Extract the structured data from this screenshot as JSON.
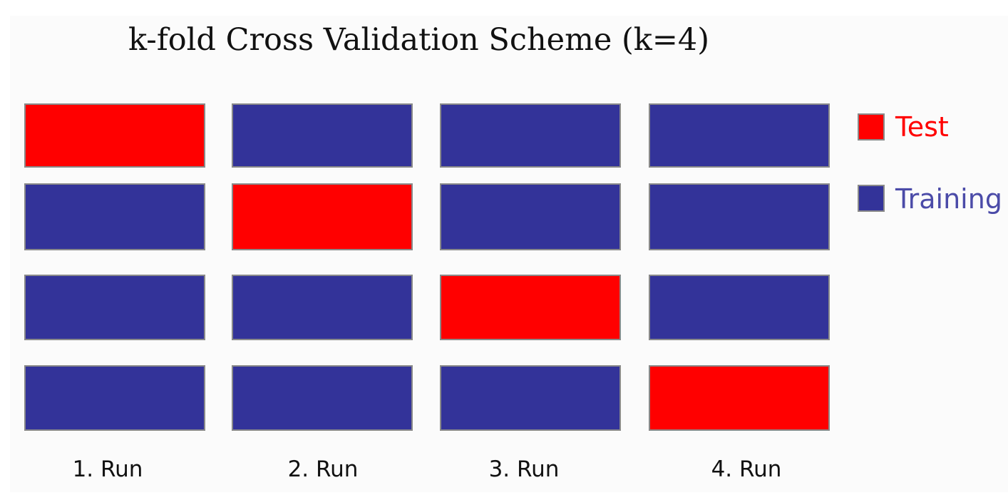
{
  "title": "k-fold Cross Validation Scheme (k=4)",
  "colors": {
    "test": "#ff0000",
    "training": "#333399"
  },
  "legend": [
    {
      "key": "test",
      "label": "Test"
    },
    {
      "key": "training",
      "label": "Training"
    }
  ],
  "runs": [
    {
      "label": "1. Run",
      "folds": [
        "test",
        "training",
        "training",
        "training"
      ]
    },
    {
      "label": "2. Run",
      "folds": [
        "training",
        "test",
        "training",
        "training"
      ]
    },
    {
      "label": "3. Run",
      "folds": [
        "training",
        "training",
        "test",
        "training"
      ]
    },
    {
      "label": "4. Run",
      "folds": [
        "training",
        "training",
        "training",
        "test"
      ]
    }
  ]
}
